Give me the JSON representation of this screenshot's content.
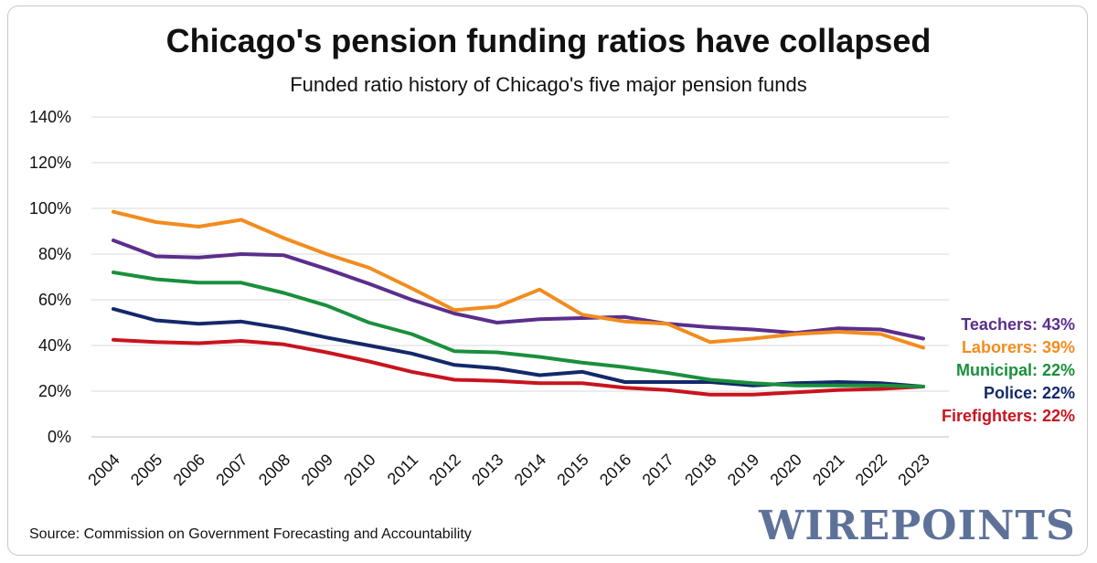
{
  "chart_data": {
    "type": "line",
    "title": "Chicago's pension funding ratios have collapsed",
    "subtitle": "Funded ratio history of Chicago's five major pension funds",
    "x": [
      "2004",
      "2005",
      "2006",
      "2007",
      "2008",
      "2009",
      "2010",
      "2011",
      "2012",
      "2013",
      "2014",
      "2015",
      "2016",
      "2017",
      "2018",
      "2019",
      "2020",
      "2021",
      "2022",
      "2023"
    ],
    "ylim": [
      0,
      140
    ],
    "yticks": [
      "0%",
      "20%",
      "40%",
      "60%",
      "80%",
      "100%",
      "120%",
      "140%"
    ],
    "grid": true,
    "legend": "end-of-line labels at right",
    "series": [
      {
        "name": "Laborers",
        "end_label": "Laborers: 39%",
        "color": "#f28c1e",
        "values": [
          98.5,
          94,
          92,
          95,
          87,
          80,
          74,
          65,
          55.5,
          57,
          64.5,
          53.5,
          50.5,
          49.5,
          41.5,
          43,
          45,
          46,
          45,
          39
        ]
      },
      {
        "name": "Teachers",
        "end_label": "Teachers: 43%",
        "color": "#5b2e8c",
        "values": [
          86,
          79,
          78.5,
          80,
          79.5,
          73.5,
          67,
          60,
          54,
          50,
          51.5,
          52,
          52.5,
          49.5,
          48,
          47,
          45.5,
          47.5,
          47,
          43
        ]
      },
      {
        "name": "Municipal",
        "end_label": "Municipal: 22%",
        "color": "#1a8f3c",
        "values": [
          72,
          69,
          67.5,
          67.5,
          63,
          57.5,
          50,
          45,
          37.5,
          37,
          35,
          32.5,
          30.5,
          28,
          25,
          23.5,
          22.5,
          22.5,
          22.5,
          22
        ]
      },
      {
        "name": "Police",
        "end_label": "Police: 22%",
        "color": "#14286b",
        "values": [
          56,
          51,
          49.5,
          50.5,
          47.5,
          43.5,
          40,
          36.5,
          31.5,
          30,
          27,
          28.5,
          24,
          24,
          24,
          22.5,
          23.5,
          24,
          23.5,
          22
        ]
      },
      {
        "name": "Firefighters",
        "end_label": "Firefighters: 22%",
        "color": "#c8141e",
        "values": [
          42.5,
          41.5,
          41,
          42,
          40.5,
          37,
          33,
          28.5,
          25,
          24.5,
          23.5,
          23.5,
          21.5,
          20.5,
          18.5,
          18.5,
          19.5,
          20.5,
          21,
          22
        ]
      }
    ]
  },
  "footer": {
    "source": "Source: Commission on Government Forecasting and Accountability",
    "logo": "WIREPOINTS"
  },
  "colors": {
    "grid": "#d9d9d9",
    "axis": "#bfbfbf",
    "text": "#111111",
    "logo": "#5e7299"
  }
}
